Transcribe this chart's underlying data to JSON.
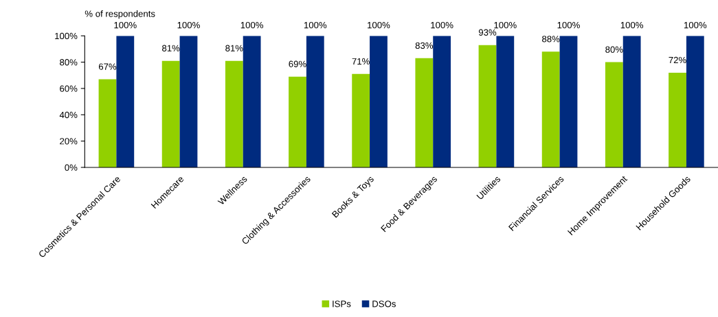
{
  "chart_data": {
    "type": "bar",
    "ylabel": "% of respondents",
    "categories": [
      "Cosmetics & Personal Care",
      "Homecare",
      "Wellness",
      "Clothing & Accessories",
      "Books & Toys",
      "Food & Beverages",
      "Utilities",
      "Financial Services",
      "Home Improvement",
      "Household Goods"
    ],
    "series": [
      {
        "name": "ISPs",
        "color": "#92d000",
        "values": [
          67,
          81,
          81,
          69,
          71,
          83,
          93,
          88,
          80,
          72
        ],
        "value_labels": [
          "67%",
          "81%",
          "81%",
          "69%",
          "71%",
          "83%",
          "93%",
          "88%",
          "80%",
          "72%"
        ]
      },
      {
        "name": "DSOs",
        "color": "#002b7f",
        "values": [
          100,
          100,
          100,
          100,
          100,
          100,
          100,
          100,
          100,
          100
        ],
        "value_labels": [
          "100%",
          "100%",
          "100%",
          "100%",
          "100%",
          "100%",
          "100%",
          "100%",
          "100%",
          "100%"
        ]
      }
    ],
    "ylim": [
      0,
      100
    ],
    "yticks": [
      {
        "value": 0,
        "label": "0%"
      },
      {
        "value": 20,
        "label": "20%"
      },
      {
        "value": 40,
        "label": "40%"
      },
      {
        "value": 60,
        "label": "60%"
      },
      {
        "value": 80,
        "label": "80%"
      },
      {
        "value": 100,
        "label": "100%"
      }
    ],
    "grid": false,
    "legend": "bottom"
  }
}
